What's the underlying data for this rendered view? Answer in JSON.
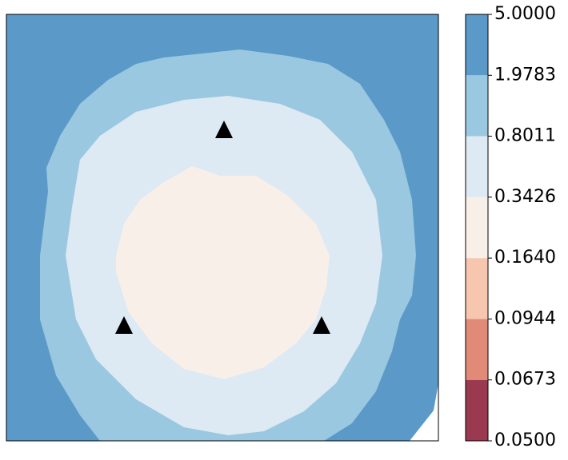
{
  "chart_data": {
    "type": "contour",
    "levels": [
      {
        "value": 0.05,
        "label": "0.0500"
      },
      {
        "value": 0.0673,
        "label": "0.0673"
      },
      {
        "value": 0.0944,
        "label": "0.0944"
      },
      {
        "value": 0.164,
        "label": "0.1640"
      },
      {
        "value": 0.3426,
        "label": "0.3426"
      },
      {
        "value": 0.8011,
        "label": "0.8011"
      },
      {
        "value": 1.9783,
        "label": "1.9783"
      },
      {
        "value": 5.0,
        "label": "5.0000"
      }
    ],
    "colors": [
      "#9b3950",
      "#e08a77",
      "#f7c6ae",
      "#f9efe9",
      "#dde9f3",
      "#9ac8e0",
      "#5b9ac8"
    ]
  }
}
